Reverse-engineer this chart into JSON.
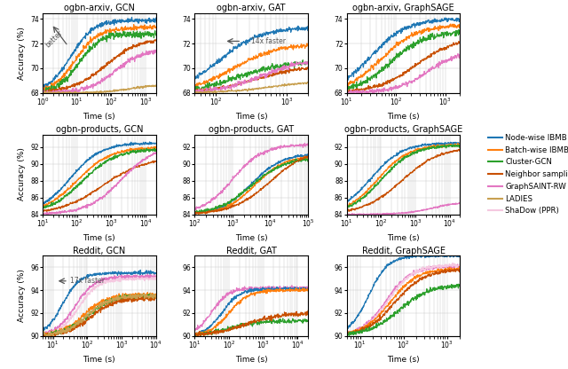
{
  "colors": {
    "node_ibmb": "#1f77b4",
    "batch_ibmb": "#ff7f0e",
    "cluster_gcn": "#2ca02c",
    "neighbor_sampling": "#c85000",
    "graphsaint_rw": "#e377c2",
    "ladies": "#c8a050",
    "shadow_ppr": "#f5c8e0"
  },
  "legend_labels": [
    "Node-wise IBMB",
    "Batch-wise IBMB",
    "Cluster-GCN",
    "Neighbor sampling",
    "GraphSAINT-RW",
    "LADIES",
    "ShaDow (PPR)"
  ],
  "subplot_titles": [
    [
      "ogbn-arxiv, GCN",
      "ogbn-arxiv, GAT",
      "ogbn-arxiv, GraphSAGE"
    ],
    [
      "ogbn-products, GCN",
      "ogbn-products, GAT",
      "ogbn-products, GraphSAGE"
    ],
    [
      "Reddit, GCN",
      "Reddit, GAT",
      "Reddit, GraphSAGE"
    ]
  ],
  "xlabel": "Time (s)"
}
